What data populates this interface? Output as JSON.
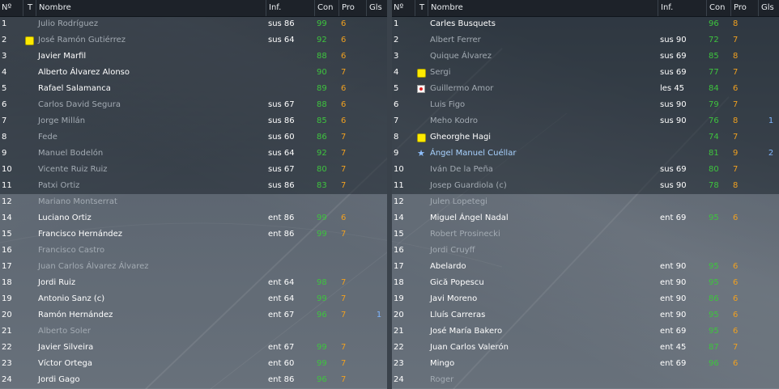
{
  "headers": {
    "num": "Nº",
    "t": "T",
    "name": "Nombre",
    "inf": "Inf.",
    "con": "Con",
    "pro": "Pro",
    "gls": "Gls"
  },
  "left": [
    {
      "n": "1",
      "name": "Julio Rodríguez",
      "inf": "sus 86",
      "con": "99",
      "pro": "6",
      "gls": "",
      "icon": "",
      "dim": true
    },
    {
      "n": "2",
      "name": "José Ramón Gutiérrez",
      "inf": "sus 64",
      "con": "92",
      "pro": "6",
      "gls": "",
      "icon": "yellow-card-icon",
      "dim": true
    },
    {
      "n": "3",
      "name": "Javier Marfil",
      "inf": "",
      "con": "88",
      "pro": "6",
      "gls": "",
      "icon": "",
      "dim": false
    },
    {
      "n": "4",
      "name": "Alberto Álvarez Alonso",
      "inf": "",
      "con": "90",
      "pro": "7",
      "gls": "",
      "icon": "",
      "dim": false
    },
    {
      "n": "5",
      "name": "Rafael Salamanca",
      "inf": "",
      "con": "89",
      "pro": "6",
      "gls": "",
      "icon": "",
      "dim": false
    },
    {
      "n": "6",
      "name": "Carlos David Segura",
      "inf": "sus 67",
      "con": "88",
      "pro": "6",
      "gls": "",
      "icon": "",
      "dim": true
    },
    {
      "n": "7",
      "name": "Jorge Millán",
      "inf": "sus 86",
      "con": "85",
      "pro": "6",
      "gls": "",
      "icon": "",
      "dim": true
    },
    {
      "n": "8",
      "name": "Fede",
      "inf": "sus 60",
      "con": "86",
      "pro": "7",
      "gls": "",
      "icon": "",
      "dim": true
    },
    {
      "n": "9",
      "name": "Manuel Bodelón",
      "inf": "sus 64",
      "con": "92",
      "pro": "7",
      "gls": "",
      "icon": "",
      "dim": true
    },
    {
      "n": "10",
      "name": "Vicente Ruiz Ruiz",
      "inf": "sus 67",
      "con": "80",
      "pro": "7",
      "gls": "",
      "icon": "",
      "dim": true
    },
    {
      "n": "11",
      "name": "Patxi Ortiz",
      "inf": "sus 86",
      "con": "83",
      "pro": "7",
      "gls": "",
      "icon": "",
      "dim": true
    },
    {
      "n": "12",
      "name": "Mariano Montserrat",
      "inf": "",
      "con": "",
      "pro": "",
      "gls": "",
      "icon": "",
      "dim": true
    },
    {
      "n": "14",
      "name": "Luciano Ortiz",
      "inf": "ent 86",
      "con": "99",
      "pro": "6",
      "gls": "",
      "icon": "",
      "dim": false
    },
    {
      "n": "15",
      "name": "Francisco Hernández",
      "inf": "ent 86",
      "con": "99",
      "pro": "7",
      "gls": "",
      "icon": "",
      "dim": false
    },
    {
      "n": "16",
      "name": "Francisco Castro",
      "inf": "",
      "con": "",
      "pro": "",
      "gls": "",
      "icon": "",
      "dim": true
    },
    {
      "n": "17",
      "name": "Juan Carlos Álvarez Álvarez",
      "inf": "",
      "con": "",
      "pro": "",
      "gls": "",
      "icon": "",
      "dim": true
    },
    {
      "n": "18",
      "name": "Jordi Ruiz",
      "inf": "ent 64",
      "con": "98",
      "pro": "7",
      "gls": "",
      "icon": "",
      "dim": false
    },
    {
      "n": "19",
      "name": "Antonio Sanz (c)",
      "inf": "ent 64",
      "con": "99",
      "pro": "7",
      "gls": "",
      "icon": "",
      "dim": false
    },
    {
      "n": "20",
      "name": "Ramón Hernández",
      "inf": "ent 67",
      "con": "96",
      "pro": "7",
      "gls": "1",
      "icon": "",
      "dim": false
    },
    {
      "n": "21",
      "name": "Alberto Soler",
      "inf": "",
      "con": "",
      "pro": "",
      "gls": "",
      "icon": "",
      "dim": true
    },
    {
      "n": "22",
      "name": "Javier Silveira",
      "inf": "ent 67",
      "con": "99",
      "pro": "7",
      "gls": "",
      "icon": "",
      "dim": false
    },
    {
      "n": "23",
      "name": "Víctor Ortega",
      "inf": "ent 60",
      "con": "99",
      "pro": "7",
      "gls": "",
      "icon": "",
      "dim": false
    },
    {
      "n": "24",
      "name": "Jordi Gago",
      "inf": "ent 86",
      "con": "96",
      "pro": "7",
      "gls": "",
      "icon": "",
      "dim": false
    }
  ],
  "right": [
    {
      "n": "1",
      "name": "Carles Busquets",
      "inf": "",
      "con": "96",
      "pro": "8",
      "gls": "",
      "icon": "",
      "dim": false
    },
    {
      "n": "2",
      "name": "Albert Ferrer",
      "inf": "sus 90",
      "con": "72",
      "pro": "7",
      "gls": "",
      "icon": "",
      "dim": true
    },
    {
      "n": "3",
      "name": "Quique Álvarez",
      "inf": "sus 69",
      "con": "85",
      "pro": "8",
      "gls": "",
      "icon": "",
      "dim": true
    },
    {
      "n": "4",
      "name": "Sergi",
      "inf": "sus 69",
      "con": "77",
      "pro": "7",
      "gls": "",
      "icon": "yellow-card-icon",
      "dim": true
    },
    {
      "n": "5",
      "name": "Guillermo Amor",
      "inf": "les 45",
      "con": "84",
      "pro": "6",
      "gls": "",
      "icon": "injury-icon",
      "dim": true
    },
    {
      "n": "6",
      "name": "Luis Figo",
      "inf": "sus 90",
      "con": "79",
      "pro": "7",
      "gls": "",
      "icon": "",
      "dim": true
    },
    {
      "n": "7",
      "name": "Meho Kodro",
      "inf": "sus 90",
      "con": "76",
      "pro": "8",
      "gls": "1",
      "icon": "",
      "dim": true
    },
    {
      "n": "8",
      "name": "Gheorghe Hagi",
      "inf": "",
      "con": "74",
      "pro": "7",
      "gls": "",
      "icon": "yellow-card-icon",
      "dim": false
    },
    {
      "n": "9",
      "name": "Ángel Manuel Cuéllar",
      "inf": "",
      "con": "81",
      "pro": "9",
      "gls": "2",
      "icon": "star-icon",
      "dim": false,
      "hl": true
    },
    {
      "n": "10",
      "name": "Iván De la Peña",
      "inf": "sus 69",
      "con": "80",
      "pro": "7",
      "gls": "",
      "icon": "",
      "dim": true
    },
    {
      "n": "11",
      "name": "Josep Guardiola (c)",
      "inf": "sus 90",
      "con": "78",
      "pro": "8",
      "gls": "",
      "icon": "",
      "dim": true
    },
    {
      "n": "12",
      "name": "Julen Lopetegi",
      "inf": "",
      "con": "",
      "pro": "",
      "gls": "",
      "icon": "",
      "dim": true
    },
    {
      "n": "14",
      "name": "Miguel Ángel Nadal",
      "inf": "ent 69",
      "con": "95",
      "pro": "6",
      "gls": "",
      "icon": "",
      "dim": false
    },
    {
      "n": "15",
      "name": "Robert Prosinecki",
      "inf": "",
      "con": "",
      "pro": "",
      "gls": "",
      "icon": "",
      "dim": true
    },
    {
      "n": "16",
      "name": "Jordi Cruyff",
      "inf": "",
      "con": "",
      "pro": "",
      "gls": "",
      "icon": "",
      "dim": true
    },
    {
      "n": "17",
      "name": "Abelardo",
      "inf": "ent 90",
      "con": "95",
      "pro": "6",
      "gls": "",
      "icon": "",
      "dim": false
    },
    {
      "n": "18",
      "name": "Gică Popescu",
      "inf": "ent 90",
      "con": "95",
      "pro": "6",
      "gls": "",
      "icon": "",
      "dim": false
    },
    {
      "n": "19",
      "name": "Javi Moreno",
      "inf": "ent 90",
      "con": "86",
      "pro": "6",
      "gls": "",
      "icon": "",
      "dim": false
    },
    {
      "n": "20",
      "name": "Lluís Carreras",
      "inf": "ent 90",
      "con": "95",
      "pro": "6",
      "gls": "",
      "icon": "",
      "dim": false
    },
    {
      "n": "21",
      "name": "José María Bakero",
      "inf": "ent 69",
      "con": "95",
      "pro": "6",
      "gls": "",
      "icon": "",
      "dim": false
    },
    {
      "n": "22",
      "name": "Juan Carlos Valerón",
      "inf": "ent 45",
      "con": "87",
      "pro": "7",
      "gls": "",
      "icon": "",
      "dim": false
    },
    {
      "n": "23",
      "name": "Mingo",
      "inf": "ent 69",
      "con": "96",
      "pro": "6",
      "gls": "",
      "icon": "",
      "dim": false
    },
    {
      "n": "24",
      "name": "Roger",
      "inf": "",
      "con": "",
      "pro": "",
      "gls": "",
      "icon": "",
      "dim": true
    }
  ]
}
